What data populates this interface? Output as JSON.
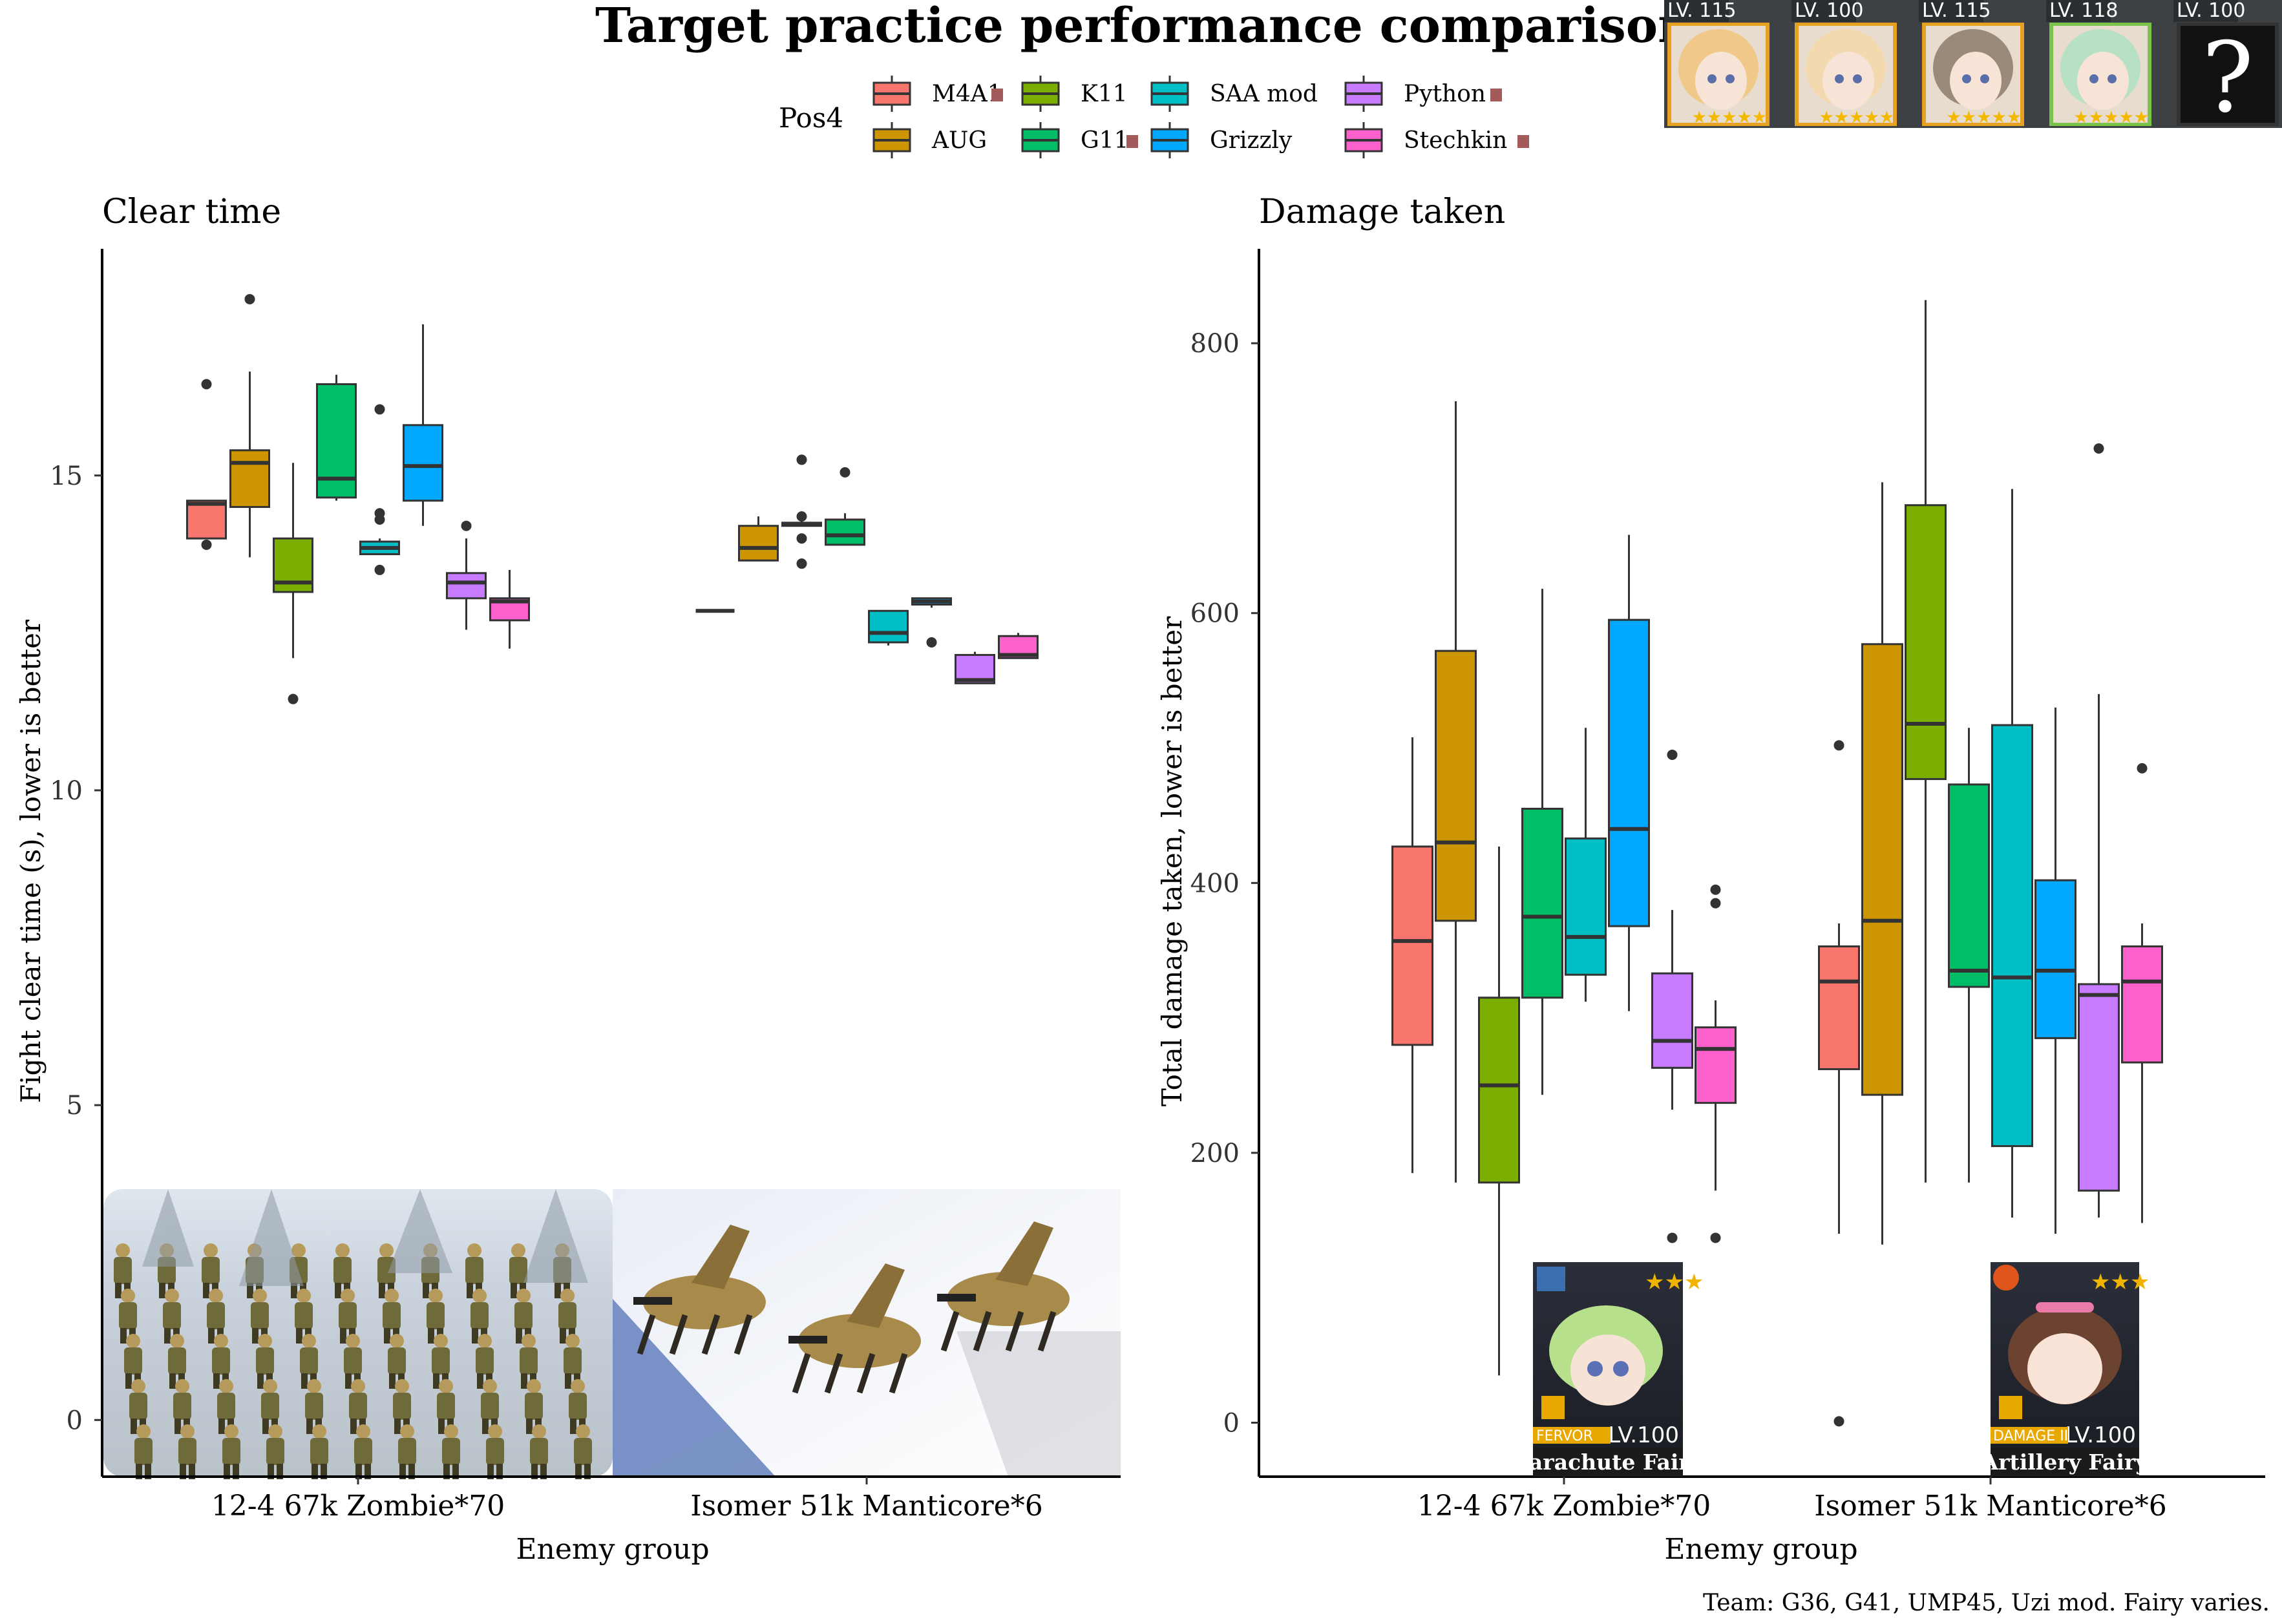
{
  "title": "Target practice performance comparison",
  "legend": {
    "title": "Pos4",
    "entries": [
      {
        "label": "M4A1",
        "color": "#F8766D",
        "badge": true
      },
      {
        "label": "AUG",
        "color": "#CD9600",
        "badge": false
      },
      {
        "label": "K11",
        "color": "#7CAE00",
        "badge": false
      },
      {
        "label": "G11",
        "color": "#00BE67",
        "badge": true
      },
      {
        "label": "SAA mod",
        "color": "#00BFC4",
        "badge": false
      },
      {
        "label": "Grizzly",
        "color": "#00A9FF",
        "badge": false
      },
      {
        "label": "Python",
        "color": "#C77CFF",
        "badge": true
      },
      {
        "label": "Stechkin",
        "color": "#FF61CC",
        "badge": true
      }
    ]
  },
  "portraits": [
    {
      "level": "LV. 115",
      "hair": "#f0c98a",
      "frame": "#e8a020"
    },
    {
      "level": "LV. 100",
      "hair": "#f3d9b0",
      "frame": "#e8a020"
    },
    {
      "level": "LV. 115",
      "hair": "#9a8a7a",
      "frame": "#e8a020"
    },
    {
      "level": "LV. 118",
      "hair": "#b7e0c4",
      "frame": "#7cc34a"
    },
    {
      "level": "LV. 100",
      "hair": "#111111",
      "frame": "#333333",
      "mystery": "?"
    }
  ],
  "fairies": [
    {
      "name": "Parachute Fairy",
      "skill": "FERVOR",
      "level": "LV.100"
    },
    {
      "name": "Artillery Fairy",
      "skill": "DAMAGE II",
      "level": "LV.100"
    }
  ],
  "footnote": "Team: G36, G41, UMP45, Uzi mod. Fairy varies.",
  "chart_data": [
    {
      "type": "box",
      "title": "Clear time",
      "xlabel": "Enemy group",
      "ylabel": "Fight clear time (s), lower is better",
      "ylim": [
        -0.9,
        18.6
      ],
      "yticks": [
        0,
        5,
        10,
        15
      ],
      "categories": [
        "12-4 67k Zombie*70",
        "Isomer 51k Manticore*6"
      ],
      "series": [
        {
          "name": "M4A1",
          "boxes": [
            {
              "lower": 14.0,
              "q1": 14.0,
              "median": 14.55,
              "q3": 14.6,
              "upper": 14.6,
              "outliers": [
                16.45,
                13.9
              ]
            },
            null
          ]
        },
        {
          "name": "AUG",
          "boxes": [
            {
              "lower": 13.7,
              "q1": 14.5,
              "median": 15.2,
              "q3": 15.4,
              "upper": 16.65,
              "outliers": [
                17.8
              ]
            },
            {
              "lower": 13.65,
              "q1": 13.65,
              "median": 13.85,
              "q3": 14.2,
              "upper": 14.35,
              "outliers": []
            }
          ]
        },
        {
          "name": "K11",
          "boxes": [
            {
              "lower": 12.1,
              "q1": 13.15,
              "median": 13.3,
              "q3": 14.0,
              "upper": 15.2,
              "outliers": [
                11.45
              ]
            },
            {
              "lower": 14.2,
              "q1": 14.2,
              "median": 14.22,
              "q3": 14.25,
              "upper": 14.3,
              "outliers": [
                15.25,
                14.35,
                13.6,
                14.0
              ]
            }
          ]
        },
        {
          "name": "G11",
          "boxes": [
            {
              "lower": 14.6,
              "q1": 14.65,
              "median": 14.95,
              "q3": 16.45,
              "upper": 16.6,
              "outliers": []
            },
            {
              "lower": 13.9,
              "q1": 13.9,
              "median": 14.05,
              "q3": 14.3,
              "upper": 14.4,
              "outliers": [
                15.05
              ]
            }
          ]
        },
        {
          "name": "SAA mod",
          "boxes": [
            {
              "lower": 13.75,
              "q1": 13.75,
              "median": 13.85,
              "q3": 13.95,
              "upper": 14.0,
              "outliers": [
                16.05,
                14.4,
                14.3,
                13.5
              ]
            },
            {
              "lower": 12.3,
              "q1": 12.35,
              "median": 12.5,
              "q3": 12.85,
              "upper": 12.85,
              "outliers": []
            }
          ]
        },
        {
          "name": "Grizzly",
          "boxes": [
            {
              "lower": 14.2,
              "q1": 14.6,
              "median": 15.15,
              "q3": 15.8,
              "upper": 17.4,
              "outliers": []
            },
            {
              "lower": 12.9,
              "q1": 12.95,
              "median": 13.0,
              "q3": 13.05,
              "upper": 13.05,
              "outliers": [
                12.35
              ]
            }
          ]
        },
        {
          "name": "Python",
          "boxes": [
            {
              "lower": 12.55,
              "q1": 13.05,
              "median": 13.3,
              "q3": 13.45,
              "upper": 14.0,
              "outliers": [
                14.2
              ]
            },
            {
              "lower": 11.7,
              "q1": 11.7,
              "median": 11.75,
              "q3": 12.15,
              "upper": 12.2,
              "outliers": []
            }
          ]
        },
        {
          "name": "Stechkin",
          "boxes": [
            {
              "lower": 12.25,
              "q1": 12.7,
              "median": 13.0,
              "q3": 13.05,
              "upper": 13.5,
              "outliers": []
            },
            {
              "lower": 12.1,
              "q1": 12.1,
              "median": 12.15,
              "q3": 12.45,
              "upper": 12.5,
              "outliers": []
            }
          ]
        }
      ],
      "extra_boxes": [
        {
          "name": "M4A1",
          "category": "Isomer 51k Manticore*6",
          "offset": -3.5,
          "median": 12.85
        }
      ]
    },
    {
      "type": "box",
      "title": "Damage taken",
      "xlabel": "Enemy group",
      "ylabel": "Total damage taken, lower is better",
      "ylim": [
        -40,
        870
      ],
      "yticks": [
        0,
        200,
        400,
        600,
        800
      ],
      "categories": [
        "12-4 67k Zombie*70",
        "Isomer 51k Manticore*6"
      ],
      "series": [
        {
          "name": "M4A1",
          "boxes": [
            {
              "lower": 185,
              "q1": 280,
              "median": 357,
              "q3": 427,
              "upper": 508,
              "outliers": []
            },
            {
              "lower": 140,
              "q1": 262,
              "median": 327,
              "q3": 353,
              "upper": 370,
              "outliers": [
                502
              ]
            }
          ]
        },
        {
          "name": "AUG",
          "boxes": [
            {
              "lower": 178,
              "q1": 372,
              "median": 430,
              "q3": 572,
              "upper": 757,
              "outliers": []
            },
            {
              "lower": 132,
              "q1": 243,
              "median": 372,
              "q3": 577,
              "upper": 697,
              "outliers": []
            }
          ]
        },
        {
          "name": "K11",
          "boxes": [
            {
              "lower": 35,
              "q1": 178,
              "median": 250,
              "q3": 315,
              "upper": 427,
              "outliers": []
            },
            {
              "lower": 178,
              "q1": 477,
              "median": 518,
              "q3": 680,
              "upper": 832,
              "outliers": []
            }
          ]
        },
        {
          "name": "G11",
          "boxes": [
            {
              "lower": 243,
              "q1": 315,
              "median": 375,
              "q3": 455,
              "upper": 618,
              "outliers": []
            },
            {
              "lower": 178,
              "q1": 323,
              "median": 335,
              "q3": 473,
              "upper": 515,
              "outliers": []
            }
          ]
        },
        {
          "name": "SAA mod",
          "boxes": [
            {
              "lower": 312,
              "q1": 332,
              "median": 360,
              "q3": 433,
              "upper": 515,
              "outliers": []
            },
            {
              "lower": 152,
              "q1": 205,
              "median": 330,
              "q3": 517,
              "upper": 692,
              "outliers": []
            }
          ]
        },
        {
          "name": "Grizzly",
          "boxes": [
            {
              "lower": 305,
              "q1": 368,
              "median": 440,
              "q3": 595,
              "upper": 658,
              "outliers": []
            },
            {
              "lower": 140,
              "q1": 285,
              "median": 335,
              "q3": 402,
              "upper": 530,
              "outliers": []
            }
          ]
        },
        {
          "name": "Python",
          "boxes": [
            {
              "lower": 232,
              "q1": 263,
              "median": 283,
              "q3": 333,
              "upper": 380,
              "outliers": [
                495,
                137
              ]
            },
            {
              "lower": 152,
              "q1": 172,
              "median": 317,
              "q3": 325,
              "upper": 540,
              "outliers": [
                722
              ]
            }
          ]
        },
        {
          "name": "Stechkin",
          "boxes": [
            {
              "lower": 172,
              "q1": 237,
              "median": 277,
              "q3": 293,
              "upper": 313,
              "outliers": [
                395,
                385,
                137
              ]
            },
            {
              "lower": 148,
              "q1": 267,
              "median": 327,
              "q3": 353,
              "upper": 370,
              "outliers": [
                485
              ]
            }
          ]
        }
      ],
      "extra_points": [
        {
          "category": "Isomer 51k Manticore*6",
          "offset": -3.5,
          "value": 1
        }
      ]
    }
  ]
}
